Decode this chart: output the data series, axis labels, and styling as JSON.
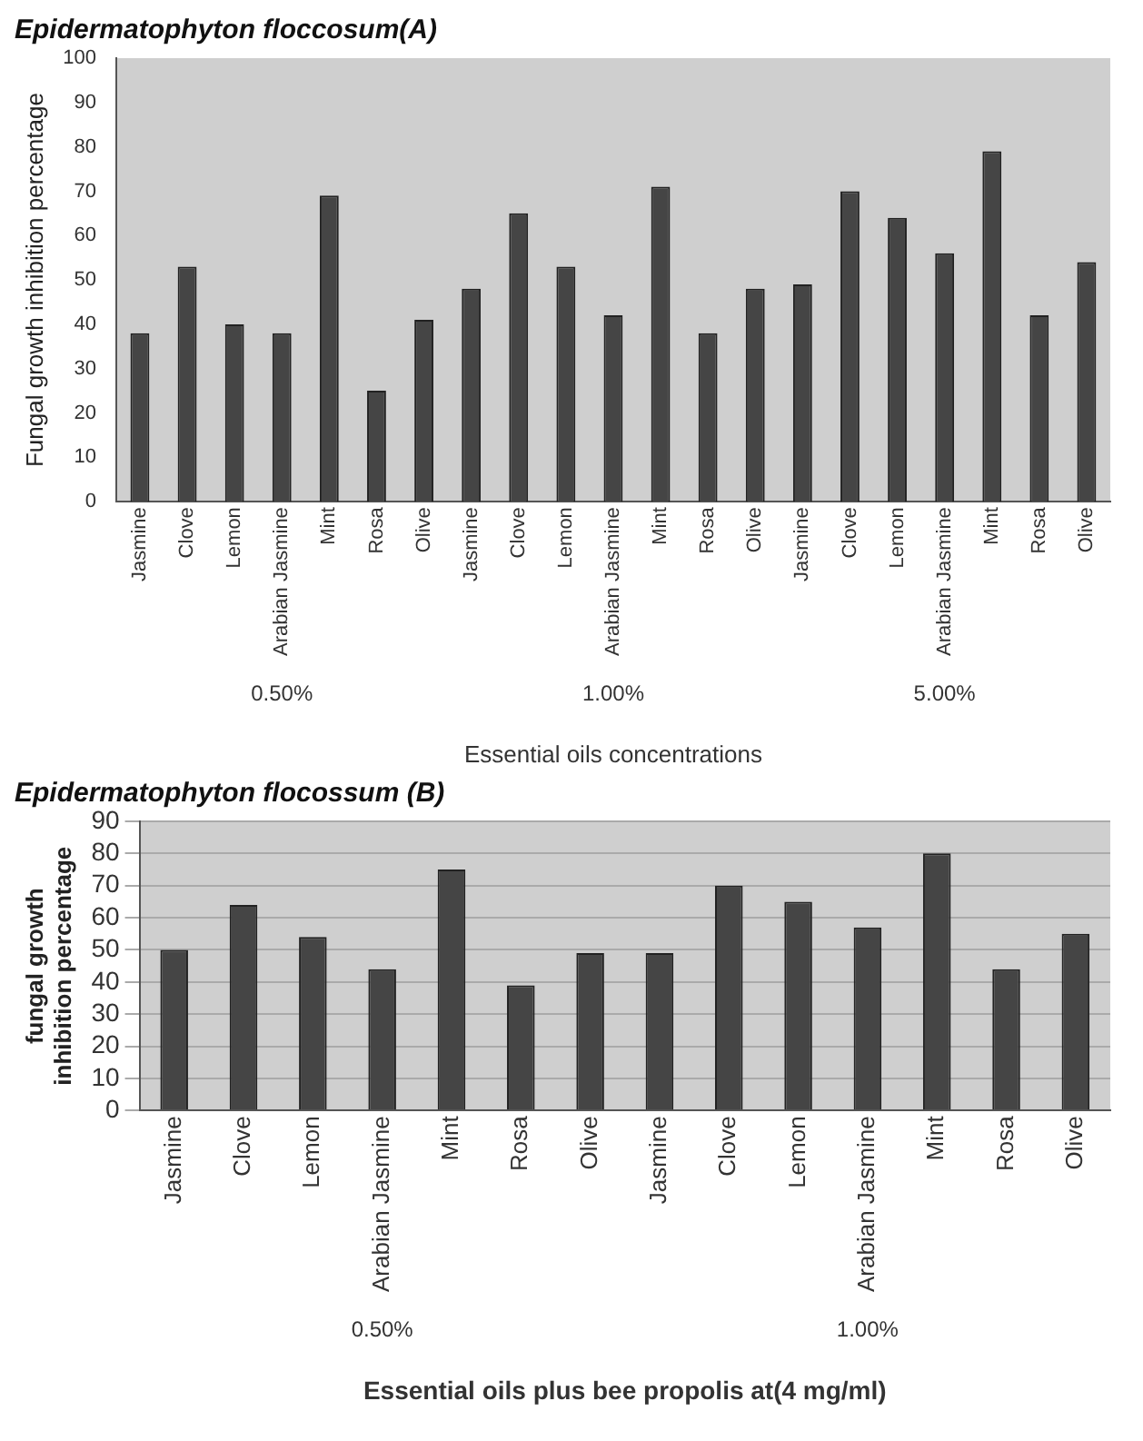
{
  "chart_data": [
    {
      "type": "bar",
      "title": "Epidermatophyton floccosum(A)",
      "xlabel": "Essential oils concentrations",
      "ylabel": "Fungal growth inhibition percentage",
      "categories": [
        "Jasmine",
        "Clove",
        "Lemon",
        "Arabian Jasmine",
        "Mint",
        "Rosa",
        "Olive",
        "Jasmine",
        "Clove",
        "Lemon",
        "Arabian Jasmine",
        "Mint",
        "Rosa",
        "Olive",
        "Jasmine",
        "Clove",
        "Lemon",
        "Arabian Jasmine",
        "Mint",
        "Rosa",
        "Olive"
      ],
      "values": [
        38,
        53,
        40,
        38,
        69,
        25,
        41,
        48,
        65,
        53,
        42,
        71,
        38,
        48,
        49,
        70,
        64,
        56,
        79,
        42,
        54
      ],
      "color": "#454545",
      "ylim": [
        0,
        100
      ],
      "yticks": [
        0,
        10,
        20,
        30,
        40,
        50,
        60,
        70,
        80,
        90,
        100
      ],
      "grid": false,
      "annotations": [
        "0.50%",
        "1.00%",
        "5.00%"
      ]
    },
    {
      "type": "bar",
      "title": "Epidermatophyton flocossum (B)",
      "xlabel": "Essential oils plus bee propolis at(4 mg/ml)",
      "ylabel": "fungal growth inhibition percentage",
      "categories": [
        "Jasmine",
        "Clove",
        "Lemon",
        "Arabian Jasmine",
        "Mint",
        "Rosa",
        "Olive",
        "Jasmine",
        "Clove",
        "Lemon",
        "Arabian Jasmine",
        "Mint",
        "Rosa",
        "Olive"
      ],
      "values": [
        50,
        64,
        54,
        44,
        75,
        39,
        49,
        49,
        70,
        65,
        57,
        80,
        44,
        55
      ],
      "color": "#454545",
      "ylim": [
        0,
        90
      ],
      "yticks": [
        0,
        10,
        20,
        30,
        40,
        50,
        60,
        70,
        80,
        90
      ],
      "grid": "y",
      "annotations": [
        "0.50%",
        "1.00%"
      ]
    }
  ]
}
